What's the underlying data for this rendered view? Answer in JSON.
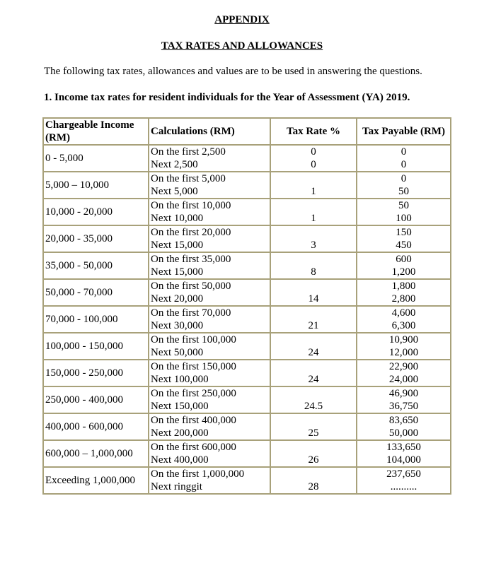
{
  "heading": "APPENDIX",
  "subheading": "TAX RATES AND ALLOWANCES",
  "intro": "The following tax rates, allowances and values are to be used in answering the questions.",
  "section": "1.   Income tax rates for resident individuals for the Year of Assessment (YA) 2019.",
  "table": {
    "headers": [
      "Chargeable Income (RM)",
      "Calculations (RM)",
      "Tax Rate %",
      "Tax Payable (RM)"
    ],
    "rows": [
      {
        "income": "0 - 5,000",
        "calc": [
          "On the first 2,500",
          "Next 2,500"
        ],
        "rate": [
          "0",
          "0"
        ],
        "payable": [
          "0",
          "0"
        ]
      },
      {
        "income": "5,000 – 10,000",
        "calc": [
          "On the first 5,000",
          "Next 5,000"
        ],
        "rate": [
          "",
          "1"
        ],
        "payable": [
          "0",
          "50"
        ]
      },
      {
        "income": "10,000 - 20,000",
        "calc": [
          "On the first 10,000",
          "Next 10,000"
        ],
        "rate": [
          "",
          "1"
        ],
        "payable": [
          "50",
          "100"
        ]
      },
      {
        "income": "20,000 - 35,000",
        "calc": [
          "On the first 20,000",
          "Next 15,000"
        ],
        "rate": [
          "",
          "3"
        ],
        "payable": [
          "150",
          "450"
        ]
      },
      {
        "income": "35,000 - 50,000",
        "calc": [
          "On the first 35,000",
          "Next 15,000"
        ],
        "rate": [
          "",
          "8"
        ],
        "payable": [
          "600",
          "1,200"
        ]
      },
      {
        "income": "50,000 - 70,000",
        "calc": [
          "On the first 50,000",
          "Next 20,000"
        ],
        "rate": [
          "",
          "14"
        ],
        "payable": [
          "1,800",
          "2,800"
        ]
      },
      {
        "income": "70,000 - 100,000",
        "calc": [
          "On the first 70,000",
          "Next 30,000"
        ],
        "rate": [
          "",
          "21"
        ],
        "payable": [
          "4,600",
          "6,300"
        ]
      },
      {
        "income": "100,000 - 150,000",
        "calc": [
          "On the first 100,000",
          "Next 50,000"
        ],
        "rate": [
          "",
          "24"
        ],
        "payable": [
          "10,900",
          "12,000"
        ]
      },
      {
        "income": "150,000 - 250,000",
        "calc": [
          "On the first 150,000",
          "Next 100,000"
        ],
        "rate": [
          "",
          "24"
        ],
        "payable": [
          "22,900",
          "24,000"
        ]
      },
      {
        "income": "250,000 - 400,000",
        "calc": [
          "On the first 250,000",
          "Next 150,000"
        ],
        "rate": [
          "",
          "24.5"
        ],
        "payable": [
          "46,900",
          "36,750"
        ]
      },
      {
        "income": "400,000 - 600,000",
        "calc": [
          "On the first 400,000",
          "Next 200,000"
        ],
        "rate": [
          "",
          "25"
        ],
        "payable": [
          "83,650",
          "50,000"
        ]
      },
      {
        "income": "600,000 – 1,000,000",
        "calc": [
          "On the first 600,000",
          "Next 400,000"
        ],
        "rate": [
          "",
          "26"
        ],
        "payable": [
          "133,650",
          "104,000"
        ]
      },
      {
        "income": "Exceeding 1,000,000",
        "calc": [
          "On the first 1,000,000",
          "Next ringgit"
        ],
        "rate": [
          "",
          "28"
        ],
        "payable": [
          "237,650",
          ".........."
        ]
      }
    ]
  }
}
